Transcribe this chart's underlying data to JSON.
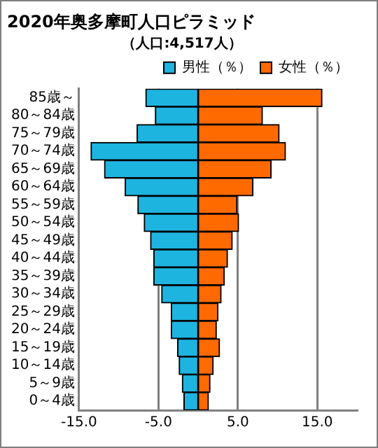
{
  "chart_data": {
    "type": "bar",
    "orientation": "horizontal",
    "stacked": true,
    "title": "2020年奥多摩町人口ピラミッド",
    "subtitle": "（人口:4,517人）",
    "categories": [
      "85歳～",
      "80～84歳",
      "75～79歳",
      "70～74歳",
      "65～69歳",
      "60～64歳",
      "55～59歳",
      "50～54歳",
      "45～49歳",
      "40～44歳",
      "35～39歳",
      "30～34歳",
      "25～29歳",
      "20～24歳",
      "15～19歳",
      "10～14歳",
      "5～9歳",
      "0～4歳"
    ],
    "series": [
      {
        "name": "男性（％）",
        "color": "#1eb4e0",
        "values": [
          -6.6,
          -5.4,
          -7.7,
          -13.5,
          -11.8,
          -9.2,
          -7.6,
          -6.8,
          -6.0,
          -5.6,
          -5.6,
          -4.6,
          -3.4,
          -3.4,
          -2.6,
          -2.4,
          -2.0,
          -1.8
        ]
      },
      {
        "name": "女性（％）",
        "color": "#ff6a00",
        "values": [
          15.6,
          8.1,
          10.2,
          11.0,
          9.2,
          6.9,
          4.9,
          5.1,
          4.3,
          3.7,
          3.3,
          2.9,
          2.5,
          2.3,
          2.7,
          1.9,
          1.5,
          1.3
        ]
      }
    ],
    "xlim": [
      -15,
      20
    ],
    "xticks": [
      {
        "value": -15,
        "label": "-15.0"
      },
      {
        "value": -5,
        "label": "-5.0"
      },
      {
        "value": 5,
        "label": "5.0"
      },
      {
        "value": 15,
        "label": "15.0"
      }
    ],
    "grid": "x",
    "legend": "top right"
  }
}
